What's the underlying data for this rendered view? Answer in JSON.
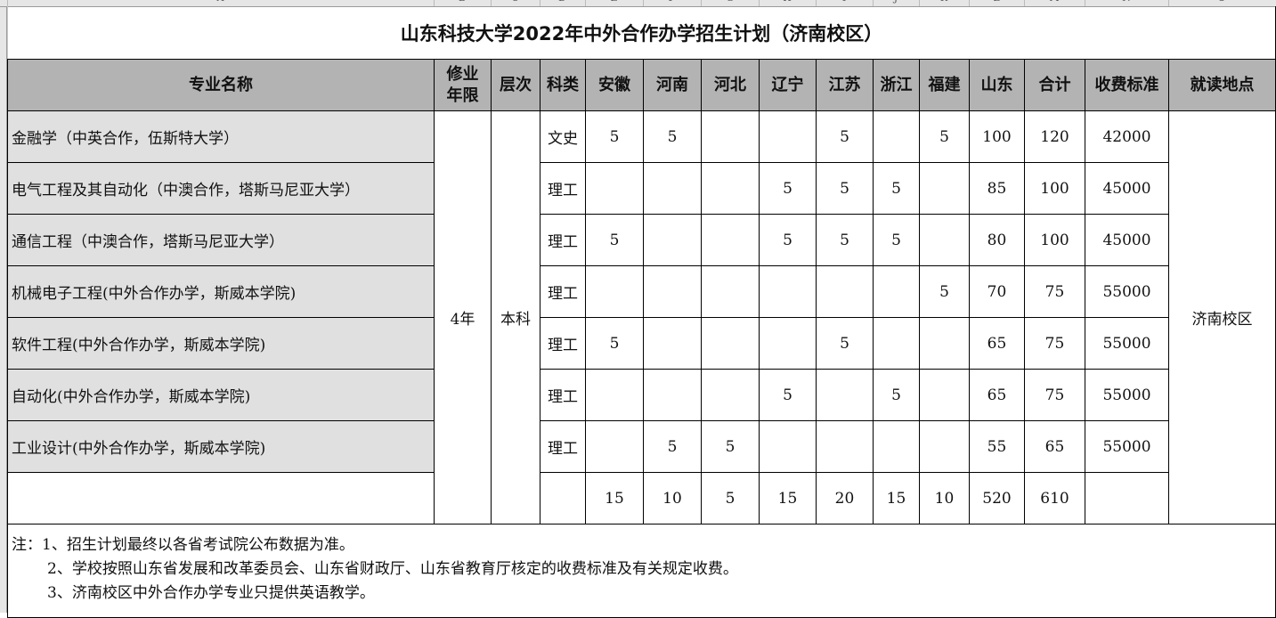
{
  "column_letters": [
    "A",
    "B",
    "C",
    "D",
    "E",
    "F",
    "G",
    "H",
    "I",
    "J",
    "K",
    "L",
    "M",
    "N",
    "O"
  ],
  "title": "山东科技大学2022年中外合作办学招生计划（济南校区）",
  "headers": [
    "专业名称",
    "修业年限",
    "层次",
    "科类",
    "安徽",
    "河南",
    "河北",
    "辽宁",
    "江苏",
    "浙江",
    "福建",
    "山东",
    "合计",
    "收费标准",
    "就读地点"
  ],
  "duration": "4年",
  "level": "本科",
  "location": "济南校区",
  "rows": [
    {
      "name": "金融学（中英合作，伍斯特大学）",
      "category": "文史",
      "counts": [
        "5",
        "5",
        "",
        "",
        "5",
        "",
        "5",
        "100"
      ],
      "total": "120",
      "fee": "42000"
    },
    {
      "name": "电气工程及其自动化（中澳合作，塔斯马尼亚大学）",
      "category": "理工",
      "counts": [
        "",
        "",
        "",
        "5",
        "5",
        "5",
        "",
        "85"
      ],
      "total": "100",
      "fee": "45000"
    },
    {
      "name": "通信工程（中澳合作，塔斯马尼亚大学）",
      "category": "理工",
      "counts": [
        "5",
        "",
        "",
        "5",
        "5",
        "5",
        "",
        "80"
      ],
      "total": "100",
      "fee": "45000"
    },
    {
      "name": "机械电子工程(中外合作办学，斯威本学院)",
      "category": "理工",
      "counts": [
        "",
        "",
        "",
        "",
        "",
        "",
        "5",
        "70"
      ],
      "total": "75",
      "fee": "55000"
    },
    {
      "name": "软件工程(中外合作办学，斯威本学院)",
      "category": "理工",
      "counts": [
        "5",
        "",
        "",
        "",
        "5",
        "",
        "",
        "65"
      ],
      "total": "75",
      "fee": "55000"
    },
    {
      "name": "自动化(中外合作办学，斯威本学院)",
      "category": "理工",
      "counts": [
        "",
        "",
        "",
        "5",
        "",
        "5",
        "",
        "65"
      ],
      "total": "75",
      "fee": "55000"
    },
    {
      "name": "工业设计(中外合作办学，斯威本学院)",
      "category": "理工",
      "counts": [
        "",
        "5",
        "5",
        "",
        "",
        "",
        "",
        "55"
      ],
      "total": "65",
      "fee": "55000"
    }
  ],
  "totals": {
    "counts": [
      "15",
      "10",
      "5",
      "15",
      "20",
      "15",
      "10",
      "520"
    ],
    "total": "610"
  },
  "notes": [
    "注：1、招生计划最终以各省考试院公布数据为准。",
    "2、学校按照山东省发展和改革委员会、山东省财政厅、山东省教育厅核定的收费标准及有关规定收费。",
    "3、济南校区中外合作办学专业只提供英语教学。"
  ]
}
